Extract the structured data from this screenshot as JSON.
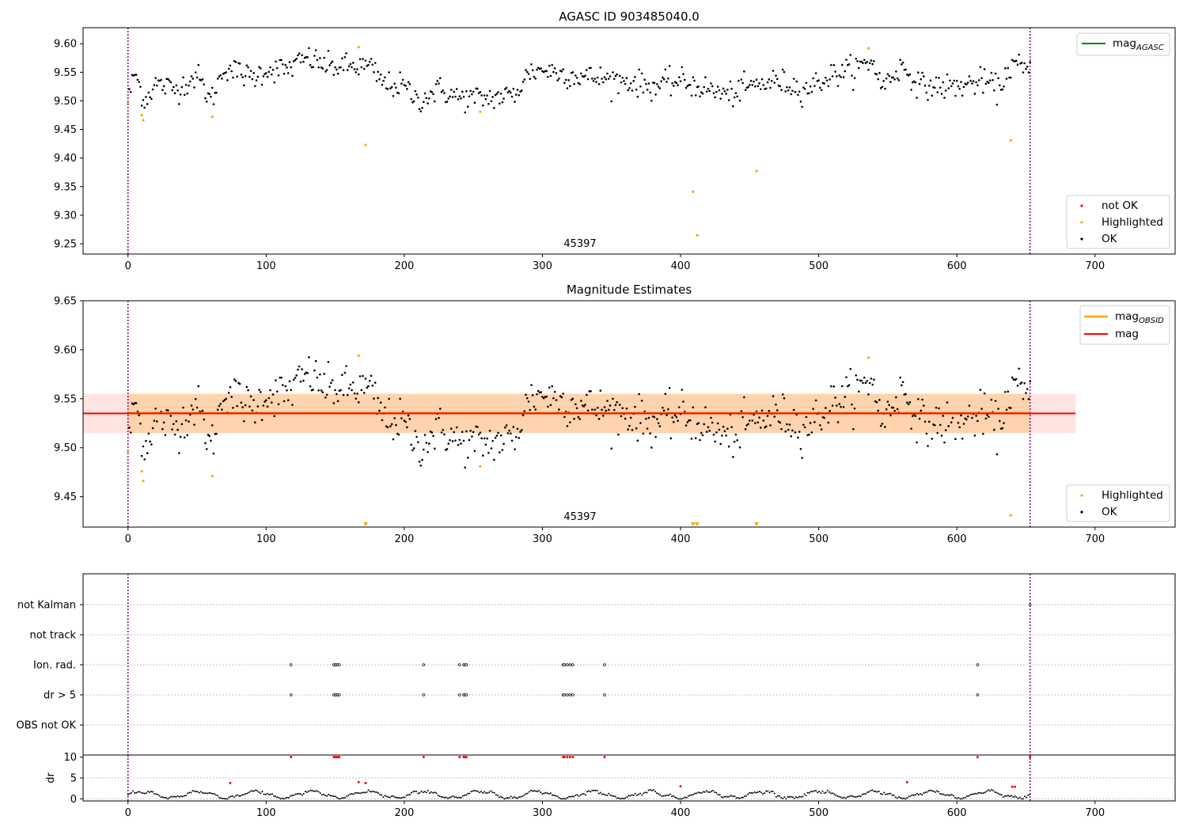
{
  "chart_data": [
    {
      "type": "scatter",
      "title": "AGASC ID 903485040.0",
      "annotation": "45397",
      "xlim": [
        -32.5,
        758
      ],
      "ylim": [
        9.232,
        9.628
      ],
      "x_ticks": [
        0,
        100,
        200,
        300,
        400,
        500,
        600,
        700
      ],
      "y_ticks": [
        9.25,
        9.3,
        9.35,
        9.4,
        9.45,
        9.5,
        9.55,
        9.6
      ],
      "vlines_x": [
        0,
        653
      ],
      "legends": [
        {
          "position": "top-right",
          "entries": [
            {
              "label": "mag",
              "subscript": "AGASC",
              "marker": "line",
              "color": "#008000"
            }
          ]
        },
        {
          "position": "bottom-right",
          "entries": [
            {
              "label": "not OK",
              "marker": "dot",
              "color": "#ff0000"
            },
            {
              "label": "Highlighted",
              "marker": "dot",
              "color": "#ffa500"
            },
            {
              "label": "OK",
              "marker": "dot",
              "color": "#000000"
            }
          ]
        }
      ],
      "highlighted_points": [
        [
          0,
          9.497
        ],
        [
          10,
          9.475
        ],
        [
          11,
          9.466
        ],
        [
          61,
          9.472
        ],
        [
          167,
          9.594
        ],
        [
          172,
          9.423
        ],
        [
          255,
          9.481
        ],
        [
          409,
          9.341
        ],
        [
          412,
          9.265
        ],
        [
          455,
          9.377
        ],
        [
          536,
          9.592
        ],
        [
          639,
          9.431
        ]
      ],
      "ok_trend": [
        [
          0,
          9.5
        ],
        [
          5,
          9.55
        ],
        [
          12,
          9.5
        ],
        [
          20,
          9.53
        ],
        [
          35,
          9.52
        ],
        [
          50,
          9.545
        ],
        [
          60,
          9.5
        ],
        [
          70,
          9.56
        ],
        [
          90,
          9.54
        ],
        [
          100,
          9.555
        ],
        [
          115,
          9.555
        ],
        [
          130,
          9.575
        ],
        [
          145,
          9.56
        ],
        [
          165,
          9.56
        ],
        [
          175,
          9.56
        ],
        [
          185,
          9.53
        ],
        [
          200,
          9.525
        ],
        [
          210,
          9.5
        ],
        [
          225,
          9.52
        ],
        [
          240,
          9.505
        ],
        [
          260,
          9.505
        ],
        [
          280,
          9.51
        ],
        [
          290,
          9.55
        ],
        [
          300,
          9.555
        ],
        [
          320,
          9.545
        ],
        [
          340,
          9.54
        ],
        [
          360,
          9.535
        ],
        [
          380,
          9.525
        ],
        [
          400,
          9.535
        ],
        [
          420,
          9.52
        ],
        [
          435,
          9.51
        ],
        [
          450,
          9.525
        ],
        [
          470,
          9.535
        ],
        [
          490,
          9.52
        ],
        [
          510,
          9.545
        ],
        [
          530,
          9.56
        ],
        [
          540,
          9.57
        ],
        [
          545,
          9.525
        ],
        [
          560,
          9.56
        ],
        [
          575,
          9.525
        ],
        [
          600,
          9.525
        ],
        [
          620,
          9.535
        ],
        [
          630,
          9.52
        ],
        [
          640,
          9.565
        ],
        [
          653,
          9.55
        ]
      ]
    },
    {
      "type": "scatter",
      "title": "Magnitude Estimates",
      "annotation": "45397",
      "xlim": [
        -32.5,
        758
      ],
      "ylim": [
        9.419,
        9.65
      ],
      "x_ticks": [
        0,
        100,
        200,
        300,
        400,
        500,
        600,
        700
      ],
      "y_ticks": [
        9.45,
        9.5,
        9.55,
        9.6,
        9.65
      ],
      "vlines_x": [
        0,
        653
      ],
      "mag_line": {
        "y": 9.535,
        "x_range": [
          -32.5,
          686
        ],
        "color": "#ff0000"
      },
      "mag_obsid_line": {
        "y": 9.5355,
        "x_range": [
          0,
          653
        ],
        "color": "#ffa500"
      },
      "mag_band": {
        "y_range": [
          9.515,
          9.555
        ],
        "x_range": [
          -32.5,
          686
        ],
        "color": "#ffe4e1"
      },
      "mag_obsid_band": {
        "y_range": [
          9.515,
          9.555
        ],
        "x_range": [
          0,
          653
        ],
        "color": "#ffcc99"
      },
      "legends": [
        {
          "position": "top-right",
          "entries": [
            {
              "label": "mag",
              "subscript": "OBSID",
              "marker": "line",
              "color": "#ffa500"
            },
            {
              "label": "mag",
              "marker": "line",
              "color": "#ff0000"
            }
          ]
        },
        {
          "position": "bottom-right",
          "entries": [
            {
              "label": "Highlighted",
              "marker": "dot",
              "color": "#ffa500"
            },
            {
              "label": "OK",
              "marker": "dot",
              "color": "#000000"
            }
          ]
        }
      ],
      "highlighted_points": [
        [
          0,
          9.497
        ],
        [
          10,
          9.476
        ],
        [
          11,
          9.466
        ],
        [
          61,
          9.471
        ],
        [
          167,
          9.594
        ],
        [
          255,
          9.481
        ],
        [
          536,
          9.592
        ],
        [
          639,
          9.431
        ]
      ],
      "clipped_markers_x": [
        172,
        409,
        412,
        455
      ]
    },
    {
      "type": "scatter",
      "y_categories": [
        "not Kalman",
        "not track",
        "Ion. rad.",
        "dr > 5",
        "OBS not OK"
      ],
      "xlim": [
        -32.5,
        758
      ],
      "vlines_x": [
        0,
        653
      ],
      "flag_points": {
        "Ion. rad.": [
          118,
          149,
          150,
          151,
          152,
          153,
          214,
          240,
          243,
          244,
          245,
          315,
          316,
          318,
          320,
          322,
          345,
          615
        ],
        "dr > 5": [
          118,
          149,
          150,
          151,
          152,
          153,
          214,
          240,
          243,
          244,
          245,
          315,
          316,
          318,
          320,
          322,
          345,
          615
        ],
        "not Kalman": [
          653
        ]
      }
    },
    {
      "type": "scatter",
      "ylabel": "dr",
      "xlim": [
        -32.5,
        758
      ],
      "ylim": [
        -0.5,
        10.5
      ],
      "x_ticks": [
        0,
        100,
        200,
        300,
        400,
        500,
        600,
        700
      ],
      "y_ticks": [
        0,
        5,
        10
      ],
      "vlines_x": [
        0,
        653
      ],
      "dr_red_points": [
        [
          74,
          3.8
        ],
        [
          167,
          4.0
        ],
        [
          172,
          3.8
        ],
        [
          400,
          3.0
        ],
        [
          564,
          4.0
        ],
        [
          640,
          2.9
        ],
        [
          642,
          2.9
        ],
        [
          118,
          10
        ],
        [
          149,
          10
        ],
        [
          150,
          10
        ],
        [
          151,
          10
        ],
        [
          152,
          10
        ],
        [
          153,
          10
        ],
        [
          214,
          10
        ],
        [
          240,
          10
        ],
        [
          243,
          10
        ],
        [
          244,
          10
        ],
        [
          245,
          10
        ],
        [
          315,
          10
        ],
        [
          316,
          10
        ],
        [
          318,
          10
        ],
        [
          320,
          10
        ],
        [
          322,
          10
        ],
        [
          345,
          10
        ],
        [
          615,
          10
        ],
        [
          653,
          10
        ]
      ]
    }
  ]
}
